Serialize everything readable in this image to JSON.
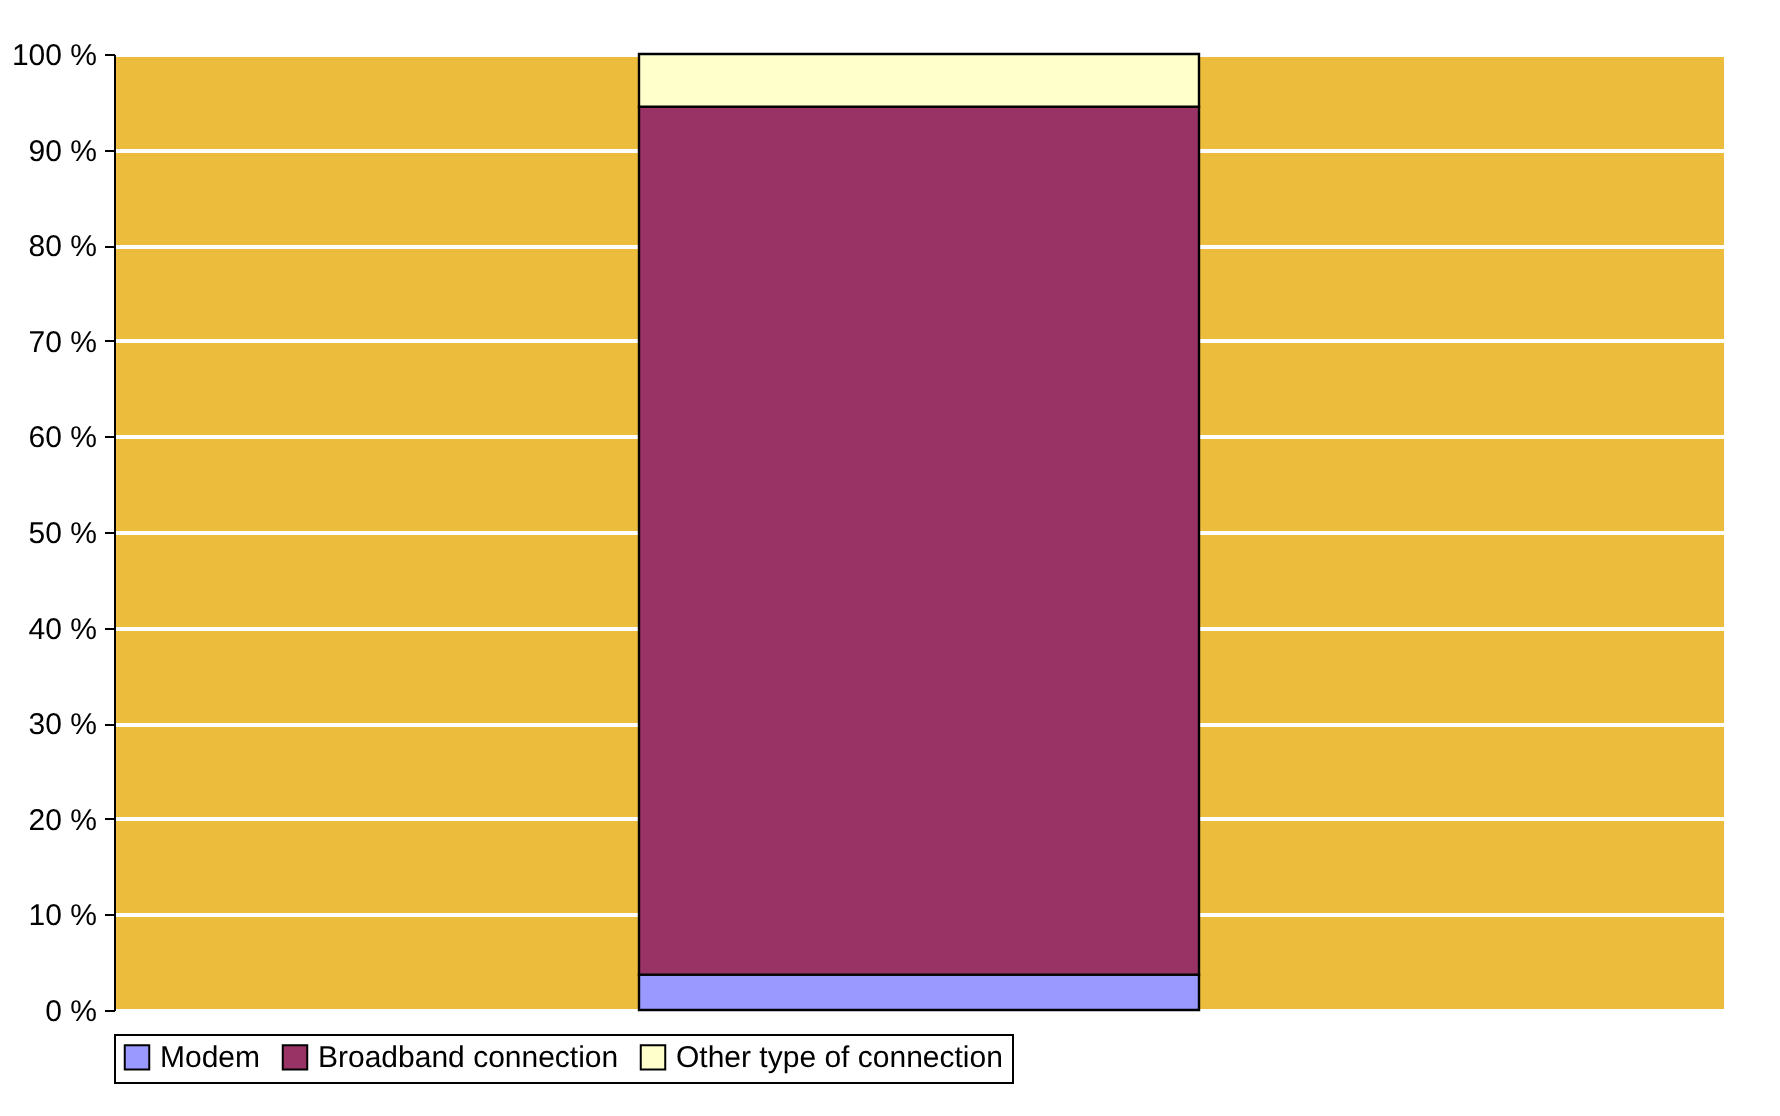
{
  "chart_data": {
    "type": "bar",
    "stacked": true,
    "categories": [
      null
    ],
    "series": [
      {
        "name": "Modem",
        "color": "#9999ff",
        "values": [
          3.7
        ]
      },
      {
        "name": "Broadband connection",
        "color": "#993366",
        "values": [
          90.8
        ]
      },
      {
        "name": "Other type of connection",
        "color": "#ffffcc",
        "values": [
          5.5
        ]
      }
    ],
    "ylim": [
      0,
      100
    ],
    "yticks": [
      {
        "value": 0,
        "label": "0 %"
      },
      {
        "value": 10,
        "label": "10 %"
      },
      {
        "value": 20,
        "label": "20 %"
      },
      {
        "value": 30,
        "label": "30 %"
      },
      {
        "value": 40,
        "label": "40 %"
      },
      {
        "value": 50,
        "label": "50 %"
      },
      {
        "value": 60,
        "label": "60 %"
      },
      {
        "value": 70,
        "label": "70 %"
      },
      {
        "value": 80,
        "label": "80 %"
      },
      {
        "value": 90,
        "label": "90 %"
      },
      {
        "value": 100,
        "label": "100 %"
      }
    ],
    "grid": "y",
    "legend": "bottom",
    "tick_labels": "y"
  }
}
